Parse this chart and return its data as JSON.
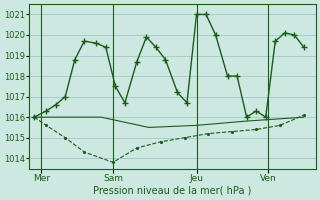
{
  "bg_color": "#cce8e0",
  "grid_color": "#aacccc",
  "line_color": "#1a5c1a",
  "xlabel": "Pression niveau de la mer( hPa )",
  "ylim": [
    1013.5,
    1021.5
  ],
  "yticks": [
    1014,
    1015,
    1016,
    1017,
    1018,
    1019,
    1020,
    1021
  ],
  "day_labels": [
    "Mer",
    "Sam",
    "Jeu",
    "Ven"
  ],
  "day_positions": [
    0.5,
    3.5,
    7.0,
    10.0
  ],
  "vline_positions": [
    0.5,
    3.5,
    7.0,
    10.0
  ],
  "xlim": [
    0,
    12
  ],
  "series1_x": [
    0.2,
    0.7,
    1.1,
    1.5,
    1.9,
    2.3,
    2.8,
    3.2,
    3.6,
    4.0,
    4.5,
    4.9,
    5.3,
    5.7,
    6.2,
    6.6,
    7.0,
    7.4,
    7.8,
    8.3,
    8.7,
    9.1,
    9.5,
    9.9,
    10.3,
    10.7,
    11.1,
    11.5
  ],
  "series1_y": [
    1016.0,
    1016.3,
    1016.6,
    1017.0,
    1018.8,
    1019.7,
    1019.6,
    1019.4,
    1017.5,
    1016.7,
    1018.7,
    1019.9,
    1019.4,
    1018.8,
    1017.2,
    1016.7,
    1021.0,
    1021.0,
    1020.0,
    1018.0,
    1018.0,
    1016.0,
    1016.3,
    1016.0,
    1019.7,
    1020.1,
    1020.0,
    1019.4
  ],
  "series2_x": [
    0.2,
    1.5,
    3.0,
    5.0,
    7.0,
    9.0,
    11.5
  ],
  "series2_y": [
    1016.0,
    1016.0,
    1016.0,
    1015.5,
    1015.6,
    1015.8,
    1016.0
  ],
  "series3_x": [
    0.2,
    0.7,
    1.5,
    2.3,
    3.5,
    4.5,
    5.5,
    6.5,
    7.5,
    8.5,
    9.5,
    10.5,
    11.5
  ],
  "series3_y": [
    1016.0,
    1015.6,
    1015.0,
    1014.3,
    1013.8,
    1014.5,
    1014.8,
    1015.0,
    1015.2,
    1015.3,
    1015.4,
    1015.6,
    1016.1
  ]
}
